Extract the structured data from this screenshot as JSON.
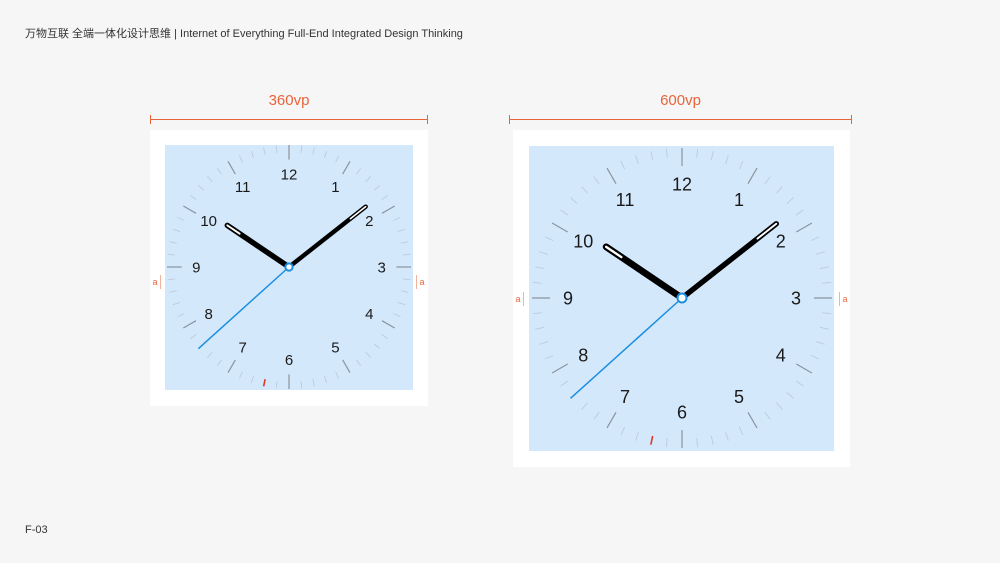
{
  "header": {
    "title": "万物互联 全端一体化设计思维 | Internet of Everything Full-End Integrated Design Thinking"
  },
  "footer": {
    "page_code": "F-03"
  },
  "clocks": [
    {
      "width_label": "360vp",
      "margin_label": "a"
    },
    {
      "width_label": "600vp",
      "margin_label": "a"
    }
  ],
  "time": {
    "hour": 10,
    "minute": 8,
    "second": 38,
    "marker_second": 32
  },
  "numerals": [
    "12",
    "1",
    "2",
    "3",
    "4",
    "5",
    "6",
    "7",
    "8",
    "9",
    "10",
    "11"
  ],
  "colors": {
    "accent": "#e8643a",
    "face": "#d4e8fc",
    "second_hand": "#1a8fe0",
    "marker": "#e03a2a",
    "hands": "#000000"
  }
}
